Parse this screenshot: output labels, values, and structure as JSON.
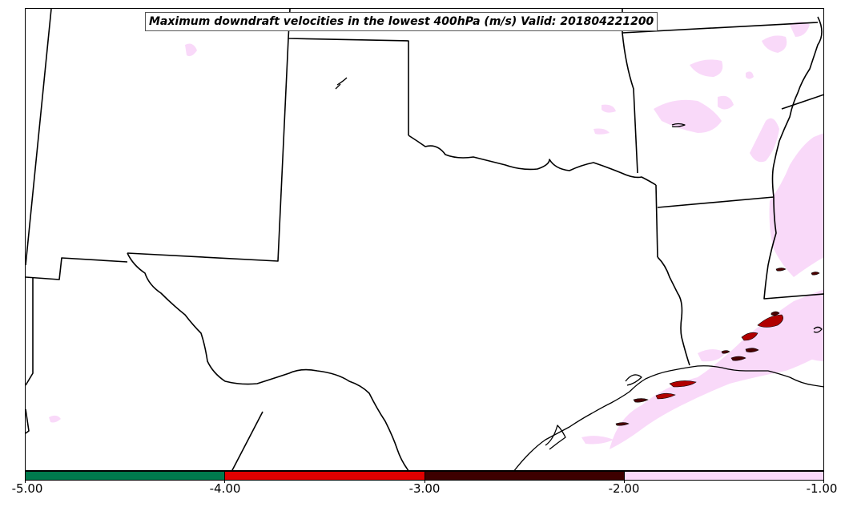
{
  "map": {
    "title": "Maximum downdraft velocities in the lowest 400hPa (m/s) Valid: 201804221200",
    "colors": {
      "light_pink": "#f9d9f9",
      "dark_red": "#4a0000",
      "red": "#e00000",
      "green": "#007a4d",
      "outline": "#000000"
    }
  },
  "colorbar": {
    "segments": [
      {
        "range": "-5.00 to -4.00",
        "color": "#007a4d"
      },
      {
        "range": "-4.00 to -3.00",
        "color": "#e00000"
      },
      {
        "range": "-3.00 to -2.00",
        "color": "#3d0000"
      },
      {
        "range": "-2.00 to -1.00",
        "color": "#f9d9f9"
      }
    ],
    "ticks": [
      "-5.00",
      "-4.00",
      "-3.00",
      "-2.00",
      "-1.00"
    ]
  }
}
